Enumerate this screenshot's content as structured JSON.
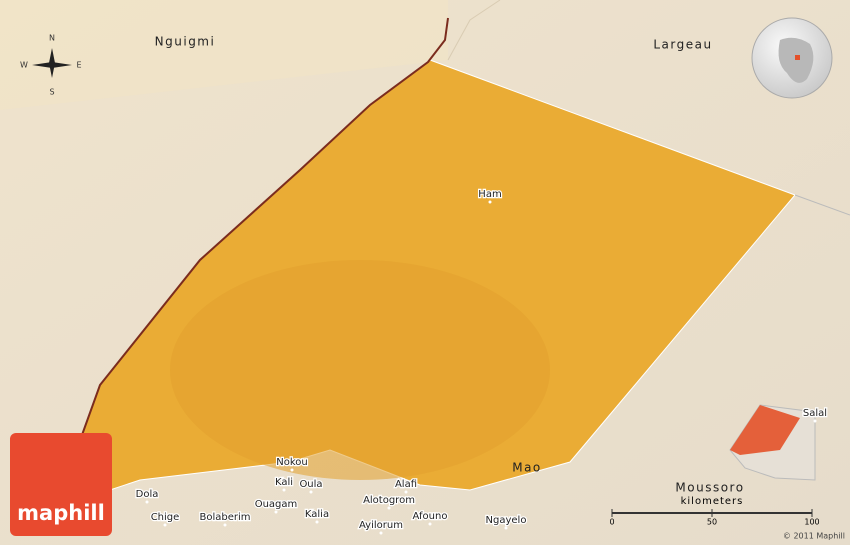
{
  "places": [
    {
      "label": "Nguigmi"
    },
    {
      "label": "Largeau"
    },
    {
      "label": "Ham"
    },
    {
      "label": "Mao"
    },
    {
      "label": "Nokou"
    },
    {
      "label": "Kali"
    },
    {
      "label": "Oula"
    },
    {
      "label": "Alafi"
    },
    {
      "label": "Alotogrom"
    },
    {
      "label": "Ouagam"
    },
    {
      "label": "Dola"
    },
    {
      "label": "Chige"
    },
    {
      "label": "Bolaberim"
    },
    {
      "label": "Kalia"
    },
    {
      "label": "Ayilorum"
    },
    {
      "label": "Afouno"
    },
    {
      "label": "Ngayelo"
    },
    {
      "label": "Salal"
    },
    {
      "label": "Moussoro"
    }
  ],
  "compass": {
    "north": "N",
    "south": "S",
    "east": "E",
    "west": "W"
  },
  "scale": {
    "unit": "kilometers",
    "ticks": [
      "0",
      "50",
      "100"
    ]
  },
  "logo": "maphill",
  "copyright": "© 2011 Maphill"
}
